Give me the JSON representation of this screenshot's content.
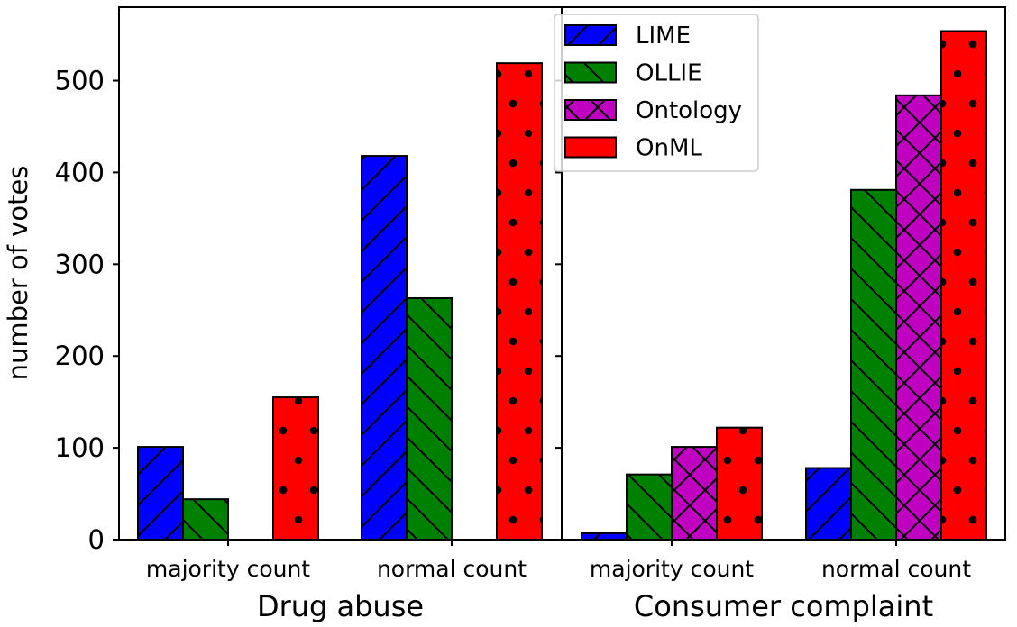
{
  "chart_data": {
    "type": "bar",
    "ylabel": "number of votes",
    "ylim": [
      0,
      580
    ],
    "yticks": [
      0,
      100,
      200,
      300,
      400,
      500
    ],
    "ytick_labels": [
      "0",
      "100",
      "200",
      "300",
      "400",
      "500"
    ],
    "legend": {
      "placement": "top-center",
      "entries": [
        {
          "name": "LIME",
          "color": "#0000ff",
          "hatch": "forward-diagonal"
        },
        {
          "name": "OLLIE",
          "color": "#008000",
          "hatch": "back-diagonal"
        },
        {
          "name": "Ontology",
          "color": "#c000c0",
          "hatch": "cross"
        },
        {
          "name": "OnML",
          "color": "#ff0000",
          "hatch": "dots"
        }
      ]
    },
    "panels": [
      {
        "title": "Drug abuse",
        "categories": [
          "majority count",
          "normal count"
        ],
        "series": [
          {
            "name": "LIME",
            "values": [
              101,
              418
            ]
          },
          {
            "name": "OLLIE",
            "values": [
              44,
              263
            ]
          },
          {
            "name": "Ontology",
            "values": [
              0,
              0
            ]
          },
          {
            "name": "OnML",
            "values": [
              155,
              519
            ]
          }
        ]
      },
      {
        "title": "Consumer complaint",
        "categories": [
          "majority count",
          "normal count"
        ],
        "series": [
          {
            "name": "LIME",
            "values": [
              7,
              78
            ]
          },
          {
            "name": "OLLIE",
            "values": [
              71,
              381
            ]
          },
          {
            "name": "Ontology",
            "values": [
              101,
              484
            ]
          },
          {
            "name": "OnML",
            "values": [
              122,
              554
            ]
          }
        ]
      }
    ]
  }
}
